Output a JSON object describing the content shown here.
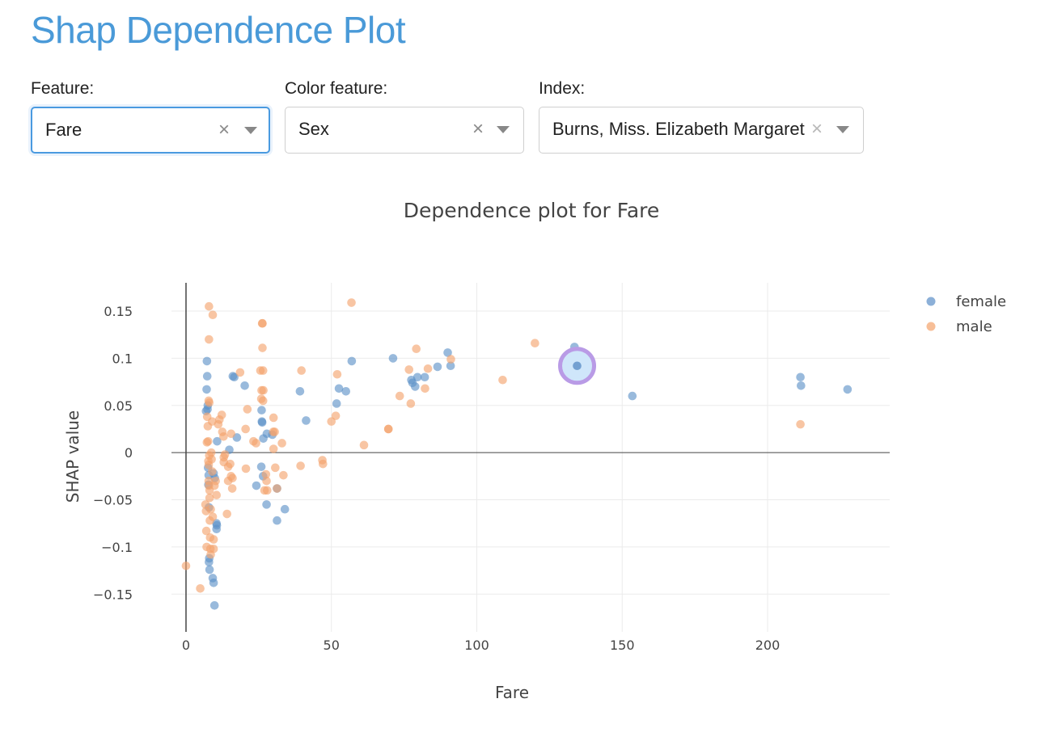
{
  "page": {
    "title": "Shap Dependence Plot"
  },
  "controls": {
    "feature": {
      "label": "Feature:",
      "value": "Fare"
    },
    "color_feature": {
      "label": "Color feature:",
      "value": "Sex"
    },
    "index": {
      "label": "Index:",
      "value": "Burns, Miss. Elizabeth Margaret"
    },
    "clear_symbol": "×"
  },
  "colors": {
    "title": "#4a9ad8",
    "female": "#5b8fc7",
    "male": "#f3a26b",
    "highlight_ring": "#b99be6",
    "highlight_fill": "#cfe6fa"
  },
  "chart_data": {
    "type": "scatter",
    "title": "Dependence plot for Fare",
    "xlabel": "Fare",
    "ylabel": "SHAP value",
    "xlim": [
      -5,
      242
    ],
    "ylim": [
      -0.19,
      0.18
    ],
    "xticks": [
      {
        "value": 0,
        "label": "0"
      },
      {
        "value": 50,
        "label": "50"
      },
      {
        "value": 100,
        "label": "100"
      },
      {
        "value": 150,
        "label": "150"
      },
      {
        "value": 200,
        "label": "200"
      }
    ],
    "yticks": [
      {
        "value": 0.15,
        "label": "0.15"
      },
      {
        "value": 0.1,
        "label": "0.1"
      },
      {
        "value": 0.05,
        "label": "0.05"
      },
      {
        "value": 0,
        "label": "0"
      },
      {
        "value": -0.05,
        "label": "−0.05"
      },
      {
        "value": -0.1,
        "label": "−0.1"
      },
      {
        "value": -0.15,
        "label": "−0.15"
      }
    ],
    "grid": true,
    "legend_position": "top-right",
    "series": [
      {
        "name": "female",
        "points": [
          [
            7.2,
            0.097
          ],
          [
            7.3,
            0.081
          ],
          [
            7.1,
            0.067
          ],
          [
            7.5,
            0.05
          ],
          [
            6.9,
            0.044
          ],
          [
            7.4,
            0.046
          ],
          [
            7.6,
            -0.016
          ],
          [
            7.8,
            -0.024
          ],
          [
            7.7,
            -0.034
          ],
          [
            7.9,
            -0.058
          ],
          [
            8.0,
            -0.112
          ],
          [
            7.9,
            -0.116
          ],
          [
            8.1,
            -0.124
          ],
          [
            9.2,
            -0.133
          ],
          [
            9.5,
            -0.138
          ],
          [
            9.8,
            -0.162
          ],
          [
            9.5,
            -0.022
          ],
          [
            9.9,
            -0.027
          ],
          [
            10.5,
            -0.075
          ],
          [
            10.6,
            -0.077
          ],
          [
            10.5,
            -0.081
          ],
          [
            10.7,
            0.012
          ],
          [
            14.9,
            0.003
          ],
          [
            16.1,
            0.081
          ],
          [
            16.6,
            0.08
          ],
          [
            17.5,
            0.016
          ],
          [
            20.2,
            0.071
          ],
          [
            24.2,
            -0.035
          ],
          [
            25.9,
            -0.015
          ],
          [
            26.0,
            0.045
          ],
          [
            26.1,
            0.033
          ],
          [
            26.2,
            0.032
          ],
          [
            26.5,
            -0.025
          ],
          [
            26.6,
            0.015
          ],
          [
            27.7,
            -0.055
          ],
          [
            27.8,
            0.02
          ],
          [
            29.7,
            0.019
          ],
          [
            31.3,
            -0.072
          ],
          [
            31.3,
            -0.038
          ],
          [
            34.0,
            -0.06
          ],
          [
            39.2,
            0.065
          ],
          [
            41.3,
            0.034
          ],
          [
            51.8,
            0.052
          ],
          [
            52.6,
            0.068
          ],
          [
            55.0,
            0.065
          ],
          [
            57.0,
            0.097
          ],
          [
            71.2,
            0.1
          ],
          [
            77.5,
            0.077
          ],
          [
            77.9,
            0.074
          ],
          [
            78.8,
            0.07
          ],
          [
            79.6,
            0.08
          ],
          [
            82.1,
            0.08
          ],
          [
            86.5,
            0.091
          ],
          [
            90.0,
            0.106
          ],
          [
            91.0,
            0.092
          ],
          [
            133.6,
            0.112
          ],
          [
            153.5,
            0.06
          ],
          [
            211.3,
            0.08
          ],
          [
            211.5,
            0.071
          ],
          [
            227.5,
            0.067
          ]
        ]
      },
      {
        "name": "male",
        "points": [
          [
            0.0,
            -0.12
          ],
          [
            4.9,
            -0.144
          ],
          [
            6.7,
            -0.055
          ],
          [
            6.9,
            -0.062
          ],
          [
            7.0,
            -0.083
          ],
          [
            7.1,
            -0.1
          ],
          [
            7.2,
            0.011
          ],
          [
            7.3,
            0.038
          ],
          [
            7.5,
            0.028
          ],
          [
            7.6,
            0.012
          ],
          [
            7.7,
            -0.009
          ],
          [
            7.8,
            -0.013
          ],
          [
            7.8,
            0.055
          ],
          [
            7.8,
            -0.03
          ],
          [
            7.9,
            -0.035
          ],
          [
            7.9,
            0.155
          ],
          [
            7.9,
            0.12
          ],
          [
            8.0,
            0.053
          ],
          [
            8.0,
            -0.003
          ],
          [
            8.1,
            -0.04
          ],
          [
            8.1,
            -0.048
          ],
          [
            8.2,
            -0.072
          ],
          [
            8.3,
            -0.09
          ],
          [
            8.4,
            -0.102
          ],
          [
            8.5,
            -0.108
          ],
          [
            8.5,
            -0.06
          ],
          [
            8.7,
            0.0
          ],
          [
            8.8,
            -0.007
          ],
          [
            9.0,
            0.033
          ],
          [
            9.0,
            -0.02
          ],
          [
            9.2,
            0.146
          ],
          [
            9.2,
            -0.068
          ],
          [
            9.5,
            -0.092
          ],
          [
            9.5,
            -0.102
          ],
          [
            9.8,
            -0.035
          ],
          [
            10.2,
            -0.03
          ],
          [
            10.5,
            -0.045
          ],
          [
            11.1,
            0.03
          ],
          [
            11.5,
            0.035
          ],
          [
            12.3,
            0.04
          ],
          [
            12.5,
            0.022
          ],
          [
            12.9,
            0.017
          ],
          [
            13.0,
            -0.005
          ],
          [
            13.0,
            -0.01
          ],
          [
            13.4,
            -0.002
          ],
          [
            14.1,
            -0.065
          ],
          [
            14.5,
            -0.03
          ],
          [
            14.5,
            -0.015
          ],
          [
            15.2,
            -0.012
          ],
          [
            15.5,
            0.02
          ],
          [
            15.5,
            -0.025
          ],
          [
            15.9,
            -0.038
          ],
          [
            16.0,
            -0.027
          ],
          [
            18.6,
            0.085
          ],
          [
            20.5,
            0.025
          ],
          [
            20.6,
            -0.017
          ],
          [
            21.1,
            0.046
          ],
          [
            23.2,
            0.012
          ],
          [
            24.1,
            0.01
          ],
          [
            25.6,
            0.087
          ],
          [
            25.9,
            0.057
          ],
          [
            26.0,
            0.066
          ],
          [
            26.2,
            0.137
          ],
          [
            26.3,
            0.111
          ],
          [
            26.3,
            0.137
          ],
          [
            26.5,
            0.087
          ],
          [
            26.5,
            0.055
          ],
          [
            26.6,
            0.066
          ],
          [
            27.0,
            -0.04
          ],
          [
            27.5,
            -0.023
          ],
          [
            27.7,
            -0.03
          ],
          [
            27.9,
            -0.04
          ],
          [
            30.0,
            0.022
          ],
          [
            30.1,
            0.037
          ],
          [
            30.1,
            0.004
          ],
          [
            30.5,
            0.022
          ],
          [
            30.7,
            -0.016
          ],
          [
            31.3,
            -0.038
          ],
          [
            33.0,
            0.01
          ],
          [
            33.5,
            -0.024
          ],
          [
            39.4,
            -0.014
          ],
          [
            39.7,
            0.087
          ],
          [
            46.9,
            -0.008
          ],
          [
            47.1,
            -0.012
          ],
          [
            50.0,
            0.033
          ],
          [
            51.5,
            0.039
          ],
          [
            52.0,
            0.083
          ],
          [
            56.9,
            0.159
          ],
          [
            61.2,
            0.008
          ],
          [
            69.6,
            0.025
          ],
          [
            69.6,
            0.025
          ],
          [
            73.5,
            0.06
          ],
          [
            76.7,
            0.088
          ],
          [
            77.3,
            0.052
          ],
          [
            79.2,
            0.11
          ],
          [
            82.2,
            0.068
          ],
          [
            83.2,
            0.089
          ],
          [
            91.1,
            0.099
          ],
          [
            108.9,
            0.077
          ],
          [
            120.0,
            0.116
          ],
          [
            211.3,
            0.03
          ]
        ]
      }
    ],
    "highlight": {
      "x": 134.5,
      "y": 0.092
    }
  }
}
